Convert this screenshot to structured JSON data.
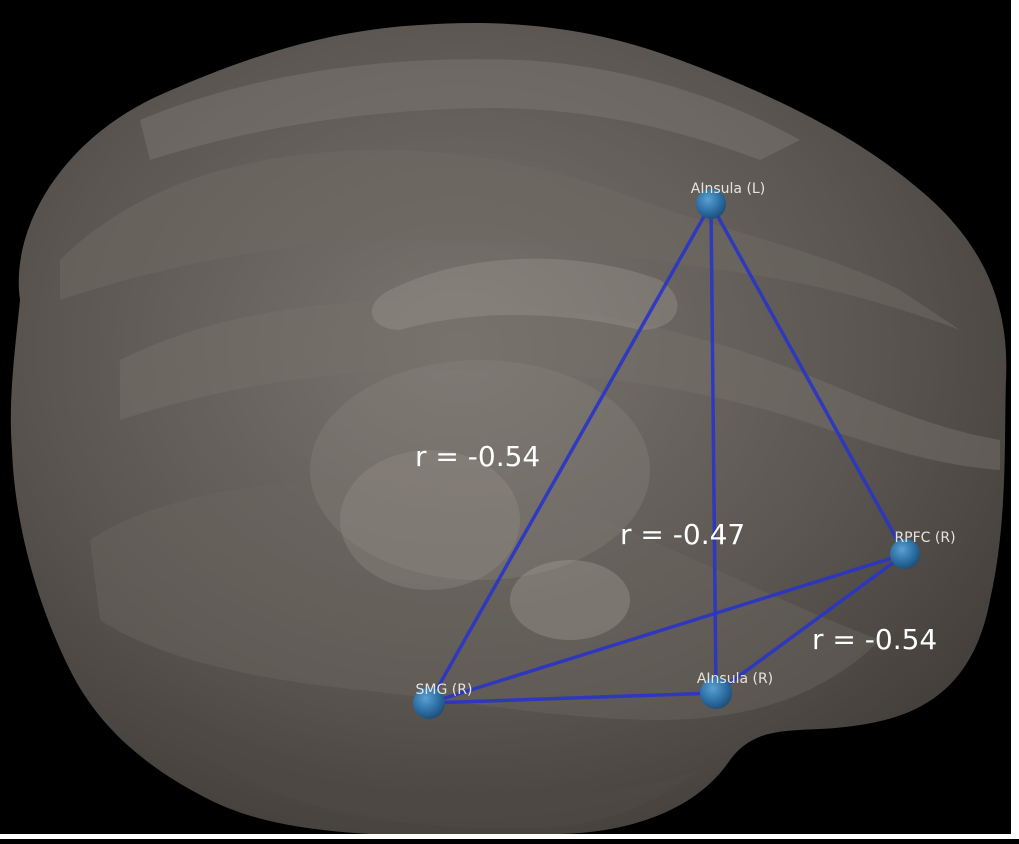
{
  "colors": {
    "background": "#000000",
    "white_frame": "#ffffff",
    "brain_fill": "#5b5651",
    "brain_light": "#8e8a84",
    "edge_color": "#2a35c8",
    "node_color": "#2c6ea3",
    "node_label_color": "#e6e3df",
    "r_label_color": "#ffffff"
  },
  "nodes": [
    {
      "id": "ainsula_l",
      "label": "AInsula (L)"
    },
    {
      "id": "rpfc_r",
      "label": "RPFC (R)"
    },
    {
      "id": "smg_r",
      "label": "SMG (R)"
    },
    {
      "id": "ainsula_r",
      "label": "AInsula (R)"
    }
  ],
  "edges": [
    {
      "from": "ainsula_l",
      "to": "smg_r"
    },
    {
      "from": "ainsula_l",
      "to": "rpfc_r"
    },
    {
      "from": "ainsula_l",
      "to": "ainsula_r"
    },
    {
      "from": "smg_r",
      "to": "rpfc_r"
    },
    {
      "from": "smg_r",
      "to": "ainsula_r"
    },
    {
      "from": "ainsula_r",
      "to": "rpfc_r"
    }
  ],
  "correlation_labels": [
    {
      "id": "r1",
      "text": "r = -0.54"
    },
    {
      "id": "r2",
      "text": "r = -0.47"
    },
    {
      "id": "r3",
      "text": "r = -0.54"
    }
  ]
}
